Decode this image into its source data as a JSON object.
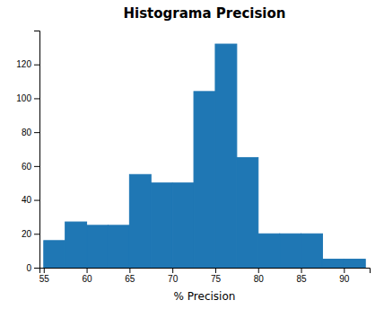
{
  "chart_data": {
    "type": "histogram",
    "title": "Histograma Precision",
    "xlabel": "% Precision",
    "bins": [
      55,
      57.5,
      60,
      62.5,
      65,
      67.5,
      70,
      72.5,
      75,
      77.5,
      80,
      82.5,
      85,
      87.5,
      90,
      92.5
    ],
    "values": [
      16,
      27,
      25,
      25,
      55,
      50,
      50,
      104,
      132,
      65,
      20,
      20,
      20,
      5,
      5
    ],
    "color": "#1f77b4",
    "xlim": [
      54.5,
      93.0
    ],
    "ylim": [
      0,
      140
    ],
    "xticks": [
      55,
      60,
      65,
      70,
      75,
      80,
      85,
      90
    ],
    "yticks": [
      0,
      20,
      40,
      60,
      80,
      100,
      120
    ]
  }
}
